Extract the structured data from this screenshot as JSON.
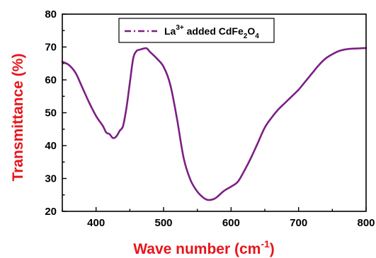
{
  "chart_data": {
    "type": "line",
    "xlabel": "Wave number (cm",
    "xlabel_sup": "-1",
    "xlabel_end": ")",
    "ylabel": "Transmittance (%)",
    "xlim": [
      350,
      800
    ],
    "ylim": [
      20,
      80
    ],
    "xticks": [
      400,
      500,
      600,
      700,
      800
    ],
    "yticks": [
      20,
      30,
      40,
      50,
      60,
      70,
      80
    ],
    "grid": false,
    "legend_position": "top-center",
    "legend": {
      "prefix": "La",
      "sup": "3+",
      "middle": " added CdFe",
      "sub1": "2",
      "o": "O",
      "sub2": "4"
    },
    "axis_color": "#000000",
    "label_color": "#e8141c",
    "series": [
      {
        "color": "#7b1f84",
        "style": "dash-dot legend marker, solid line",
        "x": [
          350,
          360,
          370,
          380,
          390,
          400,
          410,
          415,
          420,
          425,
          430,
          435,
          440,
          445,
          450,
          455,
          460,
          465,
          470,
          475,
          480,
          490,
          500,
          510,
          520,
          530,
          540,
          550,
          560,
          565,
          570,
          575,
          580,
          590,
          600,
          610,
          620,
          630,
          640,
          650,
          660,
          670,
          680,
          690,
          700,
          710,
          720,
          730,
          740,
          750,
          760,
          770,
          780,
          790,
          800
        ],
        "y": [
          65.5,
          64.5,
          62.0,
          57.5,
          53.0,
          49.0,
          46.0,
          44.0,
          43.5,
          42.3,
          42.8,
          44.5,
          46.0,
          51.5,
          59.0,
          66.5,
          68.8,
          69.2,
          69.5,
          69.6,
          68.5,
          66.5,
          64.0,
          58.5,
          48.0,
          36.0,
          29.5,
          26.0,
          24.0,
          23.5,
          23.5,
          23.8,
          24.5,
          26.3,
          27.5,
          29.0,
          32.5,
          36.5,
          41.0,
          45.5,
          48.5,
          51.0,
          53.0,
          55.0,
          57.0,
          59.5,
          62.0,
          64.5,
          66.5,
          67.8,
          68.8,
          69.3,
          69.5,
          69.6,
          69.7
        ]
      }
    ]
  }
}
